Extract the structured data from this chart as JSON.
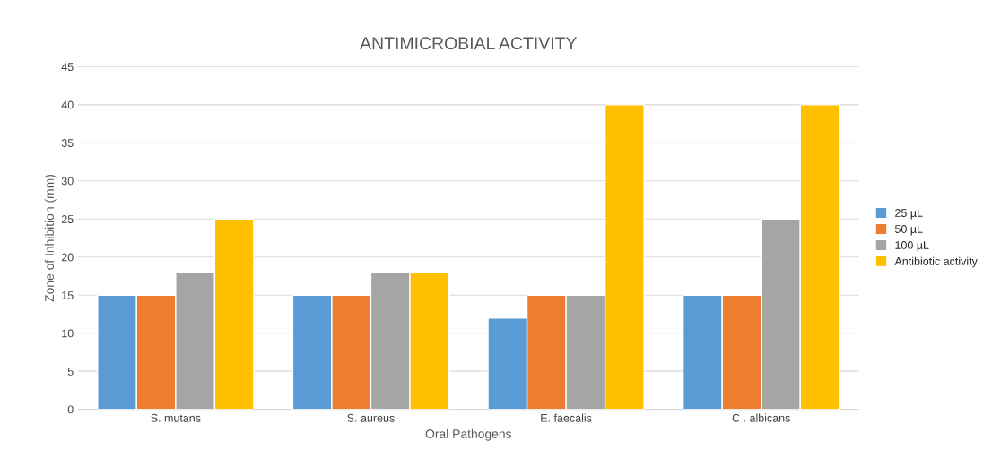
{
  "chart_data": {
    "type": "bar",
    "title": "ANTIMICROBIAL ACTIVITY",
    "xlabel": "Oral Pathogens",
    "ylabel": "Zone of Inhibition (mm)",
    "categories": [
      "S. mutans",
      "S. aureus",
      "E. faecalis",
      "C . albicans"
    ],
    "series": [
      {
        "name": "25 µL",
        "color": "#5b9bd5",
        "values": [
          15,
          15,
          12,
          15
        ]
      },
      {
        "name": "50 µL",
        "color": "#ed7d31",
        "values": [
          15,
          15,
          15,
          15
        ]
      },
      {
        "name": "100 µL",
        "color": "#a5a5a5",
        "values": [
          18,
          18,
          15,
          25
        ]
      },
      {
        "name": "Antibiotic activity",
        "color": "#ffc000",
        "values": [
          25,
          18,
          40,
          40
        ]
      }
    ],
    "ylim": [
      0,
      45
    ],
    "yticks": [
      0,
      5,
      10,
      15,
      20,
      25,
      30,
      35,
      40,
      45
    ],
    "grid": "y",
    "legend": "right"
  }
}
